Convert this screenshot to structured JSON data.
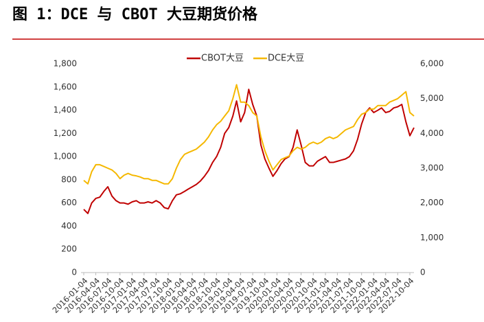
{
  "chart_data": {
    "type": "line",
    "title": "图 1：DCE 与 CBOT 大豆期货价格",
    "x": [
      "2016-01-04",
      "2016-02-04",
      "2016-03-04",
      "2016-04-04",
      "2016-05-04",
      "2016-06-04",
      "2016-07-04",
      "2016-08-04",
      "2016-09-04",
      "2016-10-04",
      "2016-11-04",
      "2016-12-04",
      "2017-01-04",
      "2017-02-04",
      "2017-03-04",
      "2017-04-04",
      "2017-05-04",
      "2017-06-04",
      "2017-07-04",
      "2017-08-04",
      "2017-09-04",
      "2017-10-04",
      "2017-11-04",
      "2017-12-04",
      "2018-01-04",
      "2018-02-04",
      "2018-03-04",
      "2018-04-04",
      "2018-05-04",
      "2018-06-04",
      "2018-07-04",
      "2018-08-04",
      "2018-09-04",
      "2018-10-04",
      "2018-11-04",
      "2018-12-04",
      "2019-01-04",
      "2019-02-04",
      "2019-03-04",
      "2019-04-04",
      "2019-05-04",
      "2019-06-04",
      "2019-07-04",
      "2019-08-04",
      "2019-09-04",
      "2019-10-04",
      "2019-11-04",
      "2019-12-04",
      "2020-01-04",
      "2020-02-04",
      "2020-03-04",
      "2020-04-04",
      "2020-05-04",
      "2020-06-04",
      "2020-07-04",
      "2020-08-04",
      "2020-09-04",
      "2020-10-04",
      "2020-11-04",
      "2020-12-04",
      "2021-01-04",
      "2021-02-04",
      "2021-03-04",
      "2021-04-04",
      "2021-05-04",
      "2021-06-04",
      "2021-07-04",
      "2021-08-04",
      "2021-09-04",
      "2021-10-04",
      "2021-11-04",
      "2021-12-04",
      "2022-01-04",
      "2022-02-04",
      "2022-03-04",
      "2022-04-04",
      "2022-05-04",
      "2022-06-04",
      "2022-07-04",
      "2022-08-04",
      "2022-09-04",
      "2022-10-04",
      "2022-11-04"
    ],
    "series": [
      {
        "name": "CBOT大豆",
        "color": "#c00000",
        "axis": "y",
        "values": [
          545,
          510,
          600,
          640,
          650,
          700,
          740,
          660,
          620,
          600,
          600,
          590,
          610,
          620,
          600,
          600,
          610,
          600,
          620,
          600,
          560,
          550,
          620,
          670,
          680,
          700,
          720,
          740,
          760,
          790,
          830,
          880,
          950,
          1000,
          1080,
          1200,
          1250,
          1350,
          1480,
          1300,
          1380,
          1580,
          1450,
          1350,
          1100,
          980,
          900,
          830,
          880,
          940,
          980,
          1000,
          1080,
          1230,
          1100,
          950,
          920,
          920,
          960,
          980,
          1000,
          950,
          950,
          960,
          970,
          980,
          1000,
          1050,
          1150,
          1280,
          1380,
          1420,
          1380,
          1400,
          1420,
          1380,
          1390,
          1420,
          1430,
          1450,
          1300,
          1180,
          1250
        ]
      },
      {
        "name": "DCE大豆",
        "color": "#f5b800",
        "axis": "y2",
        "values": [
          2650,
          2550,
          2900,
          3100,
          3100,
          3050,
          3000,
          2950,
          2850,
          2700,
          2800,
          2850,
          2800,
          2780,
          2750,
          2700,
          2700,
          2650,
          2650,
          2600,
          2550,
          2550,
          2700,
          3000,
          3250,
          3400,
          3450,
          3500,
          3550,
          3650,
          3750,
          3900,
          4100,
          4250,
          4350,
          4500,
          4650,
          5000,
          5400,
          4900,
          4900,
          4800,
          4600,
          4500,
          3900,
          3500,
          3200,
          2950,
          3100,
          3250,
          3300,
          3350,
          3500,
          3600,
          3550,
          3600,
          3700,
          3750,
          3700,
          3750,
          3850,
          3900,
          3850,
          3900,
          4000,
          4100,
          4150,
          4200,
          4400,
          4550,
          4600,
          4700,
          4700,
          4800,
          4800,
          4800,
          4900,
          4950,
          5000,
          5100,
          5200,
          4600,
          4500
        ]
      }
    ],
    "ylim": [
      0,
      1800
    ],
    "yticks": [
      0,
      200,
      400,
      600,
      800,
      {
        "value": 1000,
        "label": "1,000"
      },
      {
        "value": 1200,
        "label": "1,200"
      },
      {
        "value": 1400,
        "label": "1,400"
      },
      {
        "value": 1600,
        "label": "1,600"
      },
      {
        "value": 1800,
        "label": "1,800"
      }
    ],
    "y2lim": [
      0,
      6000
    ],
    "y2ticks": [
      0,
      {
        "value": 1000,
        "label": "1,000"
      },
      {
        "value": 2000,
        "label": "2,000"
      },
      {
        "value": 3000,
        "label": "3,000"
      },
      {
        "value": 4000,
        "label": "4,000"
      },
      {
        "value": 5000,
        "label": "5,000"
      },
      {
        "value": 6000,
        "label": "6,000"
      }
    ],
    "xticks": [
      "2016-01-04",
      "2016-04-04",
      "2016-07-04",
      "2016-10-04",
      "2017-01-04",
      "2017-04-04",
      "2017-07-04",
      "2017-10-04",
      "2018-01-04",
      "2018-04-04",
      "2018-07-04",
      "2018-10-04",
      "2019-01-04",
      "2019-04-04",
      "2019-07-04",
      "2019-10-04",
      "2020-01-04",
      "2020-04-04",
      "2020-07-04",
      "2020-10-04",
      "2021-01-04",
      "2021-04-04",
      "2021-07-04",
      "2021-10-04",
      "2022-01-04",
      "2022-04-04",
      "2022-07-04",
      "2022-10-04"
    ],
    "grid": false,
    "legend": "top"
  }
}
